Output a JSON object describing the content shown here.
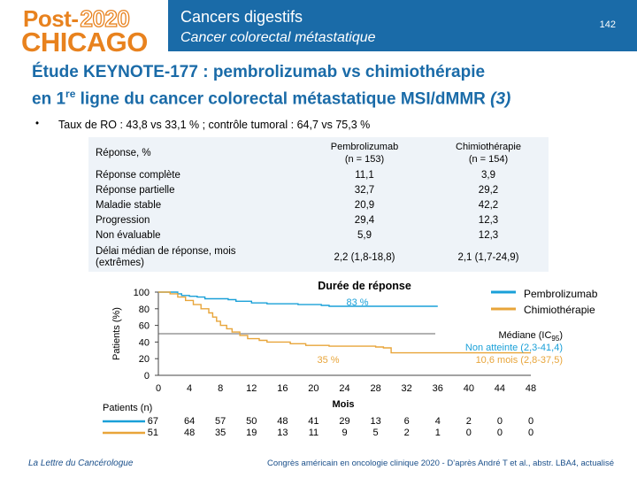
{
  "logo": {
    "line1_post": "Post-",
    "line1_year": "2020",
    "line2": "CHICAGO"
  },
  "header": {
    "title": "Cancers digestifs",
    "subtitle": "Cancer colorectal métastatique",
    "page_number": "142"
  },
  "main_title": {
    "line1": "Étude KEYNOTE-177 : pembrolizumab vs chimiothérapie",
    "line2_before": "en 1",
    "line2_sup": "re",
    "line2_after": " ligne du cancer colorectal métastatique MSI/dMMR",
    "reference": "(3)"
  },
  "bullet": {
    "symbol": "•",
    "text": "Taux de RO : 43,8 vs 33,1 % ; contrôle tumoral : 64,7 vs 75,3 %"
  },
  "table": {
    "header_label": "Réponse, %",
    "col1_line1": "Pembrolizumab",
    "col1_line2": "(n = 153)",
    "col2_line1": "Chimiothérapie",
    "col2_line2": "(n = 154)",
    "rows": [
      {
        "label": "Réponse complète",
        "pembro": "11,1",
        "chemo": "3,9"
      },
      {
        "label": "Réponse partielle",
        "pembro": "32,7",
        "chemo": "29,2"
      },
      {
        "label": "Maladie stable",
        "pembro": "20,9",
        "chemo": "42,2"
      },
      {
        "label": "Progression",
        "pembro": "29,4",
        "chemo": "12,3"
      },
      {
        "label": "Non évaluable",
        "pembro": "5,9",
        "chemo": "12,3"
      }
    ],
    "last_row_line1": "Délai médian de réponse, mois",
    "last_row_line2": "(extrêmes)",
    "last_row_pembro": "2,2 (1,8-18,8)",
    "last_row_chemo": "2,1 (1,7-24,9)"
  },
  "chart_data": {
    "type": "line",
    "title": "Durée de réponse",
    "xlabel": "Mois",
    "ylabel": "Patients (%)",
    "ylim": [
      0,
      100
    ],
    "xlim": [
      0,
      48
    ],
    "x_ticks": [
      "0",
      "4",
      "8",
      "12",
      "16",
      "20",
      "24",
      "28",
      "32",
      "36",
      "40",
      "44",
      "48"
    ],
    "y_ticks": [
      "0",
      "20",
      "40",
      "60",
      "80",
      "100"
    ],
    "grid": false,
    "legend_position": "top-right",
    "series": [
      {
        "name": "Pembrolizumab",
        "color": "#1aa0d8",
        "points": [
          [
            0,
            100
          ],
          [
            2,
            100
          ],
          [
            2.5,
            98
          ],
          [
            3,
            96
          ],
          [
            4,
            95
          ],
          [
            5,
            94
          ],
          [
            6,
            92
          ],
          [
            8,
            92
          ],
          [
            9,
            91
          ],
          [
            10,
            89
          ],
          [
            12,
            87
          ],
          [
            14,
            86
          ],
          [
            16,
            86
          ],
          [
            18,
            85
          ],
          [
            20,
            85
          ],
          [
            21,
            84
          ],
          [
            22,
            83
          ],
          [
            25,
            83
          ],
          [
            36,
            83
          ]
        ]
      },
      {
        "name": "Chimiothérapie",
        "color": "#e8a53a",
        "points": [
          [
            0,
            100
          ],
          [
            1.5,
            98
          ],
          [
            2.5,
            94
          ],
          [
            3.5,
            90
          ],
          [
            4.5,
            85
          ],
          [
            5.5,
            80
          ],
          [
            6.5,
            75
          ],
          [
            7,
            70
          ],
          [
            7.5,
            65
          ],
          [
            8,
            60
          ],
          [
            8.8,
            56
          ],
          [
            9.5,
            52
          ],
          [
            10.5,
            48
          ],
          [
            11.5,
            44
          ],
          [
            13,
            42
          ],
          [
            14,
            40
          ],
          [
            16,
            40
          ],
          [
            17,
            38
          ],
          [
            19,
            36
          ],
          [
            21,
            36
          ],
          [
            22,
            35
          ],
          [
            27,
            35
          ],
          [
            28,
            34
          ],
          [
            29,
            33
          ],
          [
            30,
            27
          ],
          [
            36,
            27
          ],
          [
            38,
            27
          ],
          [
            48,
            27
          ]
        ]
      }
    ],
    "annotations": [
      {
        "text": "83 %"
      },
      {
        "text": "35 %"
      },
      {
        "text_line1_before": "Médiane (IC",
        "text_line1_sub": "95",
        "text_line1_after": ")",
        "text_line2": "Non atteinte (2,3-41,4)",
        "text_line3": "10,6 mois (2,8-37,5)"
      }
    ],
    "risk_table": {
      "title": "Patients (n)",
      "pembro": [
        "67",
        "64",
        "57",
        "50",
        "48",
        "41",
        "29",
        "13",
        "6",
        "4",
        "2",
        "0",
        "0"
      ],
      "chemo": [
        "51",
        "48",
        "35",
        "19",
        "13",
        "11",
        "9",
        "5",
        "2",
        "1",
        "0",
        "0",
        "0"
      ]
    }
  },
  "footer": {
    "left": "La Lettre du Cancérologue",
    "right": "Congrès américain en oncologie clinique 2020 - D’après André T et al., abstr. LBA4, actualisé"
  }
}
